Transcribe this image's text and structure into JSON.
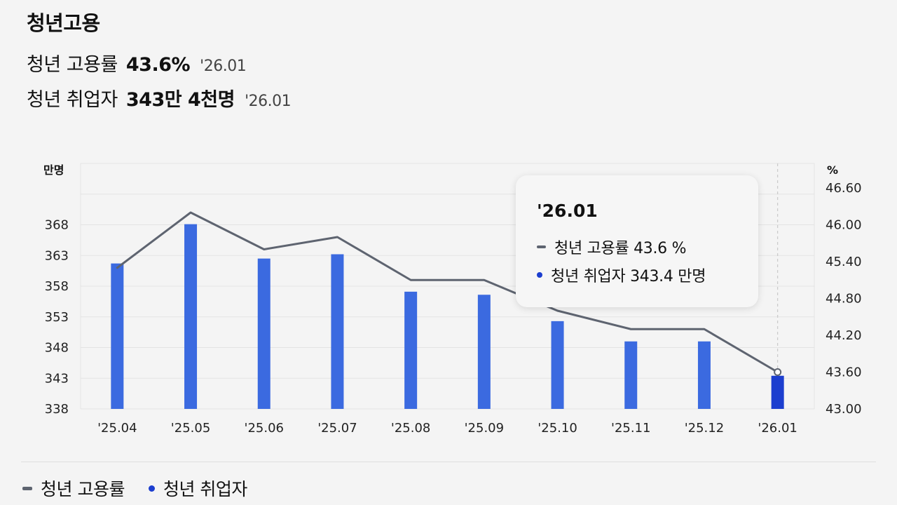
{
  "header": {
    "title": "청년고용",
    "rate_label": "청년 고용률",
    "rate_value": "43.6%",
    "rate_date": "'26.01",
    "employed_label": "청년 취업자",
    "employed_value": "343만 4천명",
    "employed_date": "'26.01"
  },
  "tooltip": {
    "title": "'26.01",
    "rate_text": "청년 고용률 43.6 %",
    "employed_text": "청년 취업자 343.4 만명"
  },
  "legend": {
    "rate": "청년 고용률",
    "employed": "청년 취업자"
  },
  "colors": {
    "bar": "#3b6ae0",
    "bar_highlight": "#1c3ecf",
    "line": "#5e6470",
    "grid": "#e3e3e3"
  },
  "chart_data": {
    "type": "bar",
    "categories": [
      "'25.04",
      "'25.05",
      "'25.06",
      "'25.07",
      "'25.08",
      "'25.09",
      "'25.10",
      "'25.11",
      "'25.12",
      "'26.01"
    ],
    "y_left_unit": "만명",
    "y_right_unit": "%",
    "ylim_left": [
      338,
      378
    ],
    "yticks_left": [
      "338",
      "343",
      "348",
      "353",
      "358",
      "363",
      "368"
    ],
    "ylim_right": [
      43.0,
      47.0
    ],
    "yticks_right": [
      "43.00",
      "43.60",
      "44.20",
      "44.80",
      "45.40",
      "46.00",
      "46.60"
    ],
    "series": [
      {
        "name": "청년 취업자",
        "type": "bar",
        "axis": "left",
        "values": [
          361.7,
          368.1,
          362.5,
          363.2,
          357.1,
          356.6,
          352.3,
          349.0,
          349.0,
          343.4
        ]
      },
      {
        "name": "청년 고용률",
        "type": "line",
        "axis": "right",
        "values": [
          45.3,
          46.2,
          45.6,
          45.8,
          45.1,
          45.1,
          44.6,
          44.3,
          44.3,
          43.6
        ]
      }
    ],
    "highlight_index": 9,
    "grid": true,
    "legend_position": "bottom"
  }
}
